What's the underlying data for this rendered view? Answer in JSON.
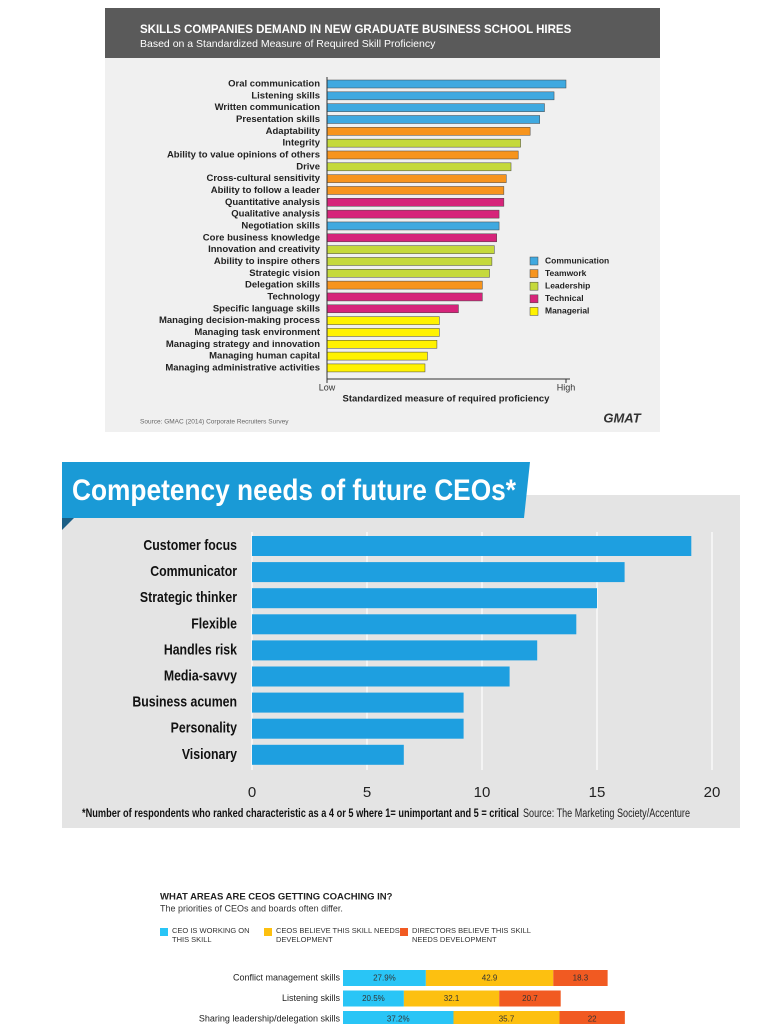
{
  "chart_data": [
    {
      "type": "bar",
      "orientation": "horizontal",
      "title": "SKILLS COMPANIES DEMAND IN NEW GRADUATE BUSINESS SCHOOL HIRES",
      "subtitle": "Based on a Standardized Measure of Required Skill Proficiency",
      "categories": [
        "Oral communication",
        "Listening skills",
        "Written communication",
        "Presentation skills",
        "Adaptability",
        "Integrity",
        "Ability to value opinions of others",
        "Drive",
        "Cross-cultural sensitivity",
        "Ability to follow a leader",
        "Quantitative analysis",
        "Qualitative analysis",
        "Negotiation skills",
        "Core business knowledge",
        "Innovation and creativity",
        "Ability to inspire others",
        "Strategic vision",
        "Delegation skills",
        "Technology",
        "Specific language skills",
        "Managing decision-making process",
        "Managing task environment",
        "Managing strategy and innovation",
        "Managing human capital",
        "Managing administrative activities"
      ],
      "series": [
        {
          "name": "Communication",
          "color": "#3fa9e0",
          "values": [
            100,
            95,
            91,
            89,
            null,
            null,
            null,
            null,
            null,
            null,
            null,
            null,
            72,
            null,
            null,
            null,
            null,
            null,
            null,
            null,
            null,
            null,
            null,
            null,
            null
          ]
        },
        {
          "name": "Teamwork",
          "color": "#f7941d",
          "values": [
            null,
            null,
            null,
            null,
            85,
            null,
            80,
            null,
            75,
            74,
            null,
            null,
            null,
            null,
            null,
            null,
            null,
            65,
            null,
            null,
            null,
            null,
            null,
            null,
            null
          ]
        },
        {
          "name": "Leadership",
          "color": "#c5d93b",
          "values": [
            null,
            null,
            null,
            null,
            null,
            81,
            null,
            77,
            null,
            null,
            null,
            null,
            null,
            null,
            70,
            69,
            68,
            null,
            null,
            null,
            null,
            null,
            null,
            null,
            null
          ]
        },
        {
          "name": "Technical",
          "color": "#d6247a",
          "values": [
            null,
            null,
            null,
            null,
            null,
            null,
            null,
            null,
            null,
            null,
            74,
            72,
            null,
            71,
            null,
            null,
            null,
            null,
            65,
            55,
            null,
            null,
            null,
            null,
            null
          ]
        },
        {
          "name": "Managerial",
          "color": "#fff200",
          "values": [
            null,
            null,
            null,
            null,
            null,
            null,
            null,
            null,
            null,
            null,
            null,
            null,
            null,
            null,
            null,
            null,
            null,
            null,
            null,
            null,
            47,
            47,
            46,
            42,
            41
          ]
        }
      ],
      "xlabel": "Standardized measure of required proficiency",
      "xlim": [
        0,
        100
      ],
      "xticks": [
        {
          "value": 0,
          "label": "Low"
        },
        {
          "value": 100,
          "label": "High"
        }
      ],
      "legend": "right",
      "source": "Source: GMAC (2014) Corporate Recruiters Survey",
      "logo": "GMAT"
    },
    {
      "type": "bar",
      "orientation": "horizontal",
      "title": "Competency needs of future CEOs*",
      "categories": [
        "Customer focus",
        "Communicator",
        "Strategic thinker",
        "Flexible",
        "Handles risk",
        "Media-savvy",
        "Business acumen",
        "Personality",
        "Visionary"
      ],
      "values": [
        19.1,
        16.2,
        15.0,
        14.1,
        12.4,
        11.2,
        9.2,
        9.2,
        6.6
      ],
      "color": "#1e9fe0",
      "xlim": [
        0,
        20
      ],
      "xticks": [
        0,
        5,
        10,
        15,
        20
      ],
      "grid": true,
      "footnote": "*Number of respondents who ranked characteristic as a 4 or 5 where 1= unimportant and 5 = critical",
      "source": "Source: The Marketing Society/Accenture"
    },
    {
      "type": "bar",
      "orientation": "horizontal",
      "stacked": true,
      "title": "WHAT AREAS ARE CEOS GETTING COACHING IN?",
      "subtitle": "The priorities of CEOs and boards often differ.",
      "categories": [
        "Conflict management skills",
        "Listening skills",
        "Sharing leadership/delegation skills"
      ],
      "series": [
        {
          "name": "CEO IS WORKING ON THIS SKILL",
          "color": "#29c5f6",
          "values": [
            27.9,
            20.5,
            37.2
          ],
          "value_labels": [
            "27.9%",
            "20.5%",
            "37.2%"
          ]
        },
        {
          "name": "CEOS BELIEVE THIS SKILL NEEDS DEVELOPMENT",
          "color": "#fdc010",
          "values": [
            42.9,
            32.1,
            35.7
          ]
        },
        {
          "name": "DIRECTORS BELIEVE THIS SKILL NEEDS DEVELOPMENT",
          "color": "#f15a22",
          "values": [
            18.3,
            20.7,
            22
          ]
        }
      ]
    }
  ]
}
